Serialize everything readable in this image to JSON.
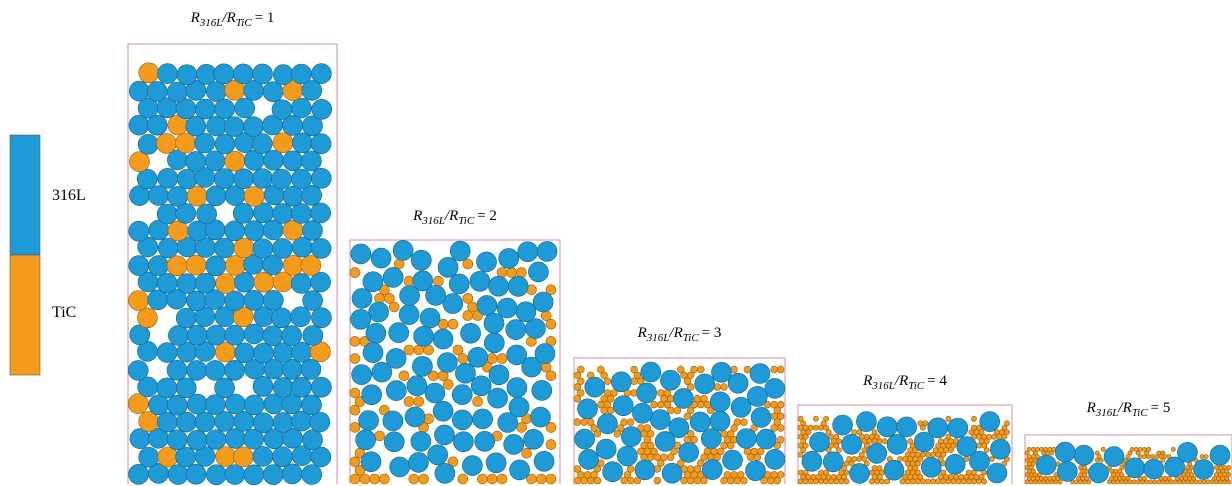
{
  "legend": {
    "items": [
      {
        "label": "316L",
        "color": "#1e9ad6"
      },
      {
        "label": "TiC",
        "color": "#f49b1c"
      }
    ]
  },
  "panels": [
    {
      "label": {
        "r1": "R",
        "s1": "316L",
        "r2": "/R",
        "s2": "TiC",
        "eq": "= 1"
      }
    },
    {
      "label": {
        "r1": "R",
        "s1": "316L",
        "r2": "/R",
        "s2": "TiC",
        "eq": "= 2"
      }
    },
    {
      "label": {
        "r1": "R",
        "s1": "316L",
        "r2": "/R",
        "s2": "TiC",
        "eq": "= 3"
      }
    },
    {
      "label": {
        "r1": "R",
        "s1": "316L",
        "r2": "/R",
        "s2": "TiC",
        "eq": "= 4"
      }
    },
    {
      "label": {
        "r1": "R",
        "s1": "316L",
        "r2": "/R",
        "s2": "TiC",
        "eq": "= 5"
      }
    }
  ]
}
